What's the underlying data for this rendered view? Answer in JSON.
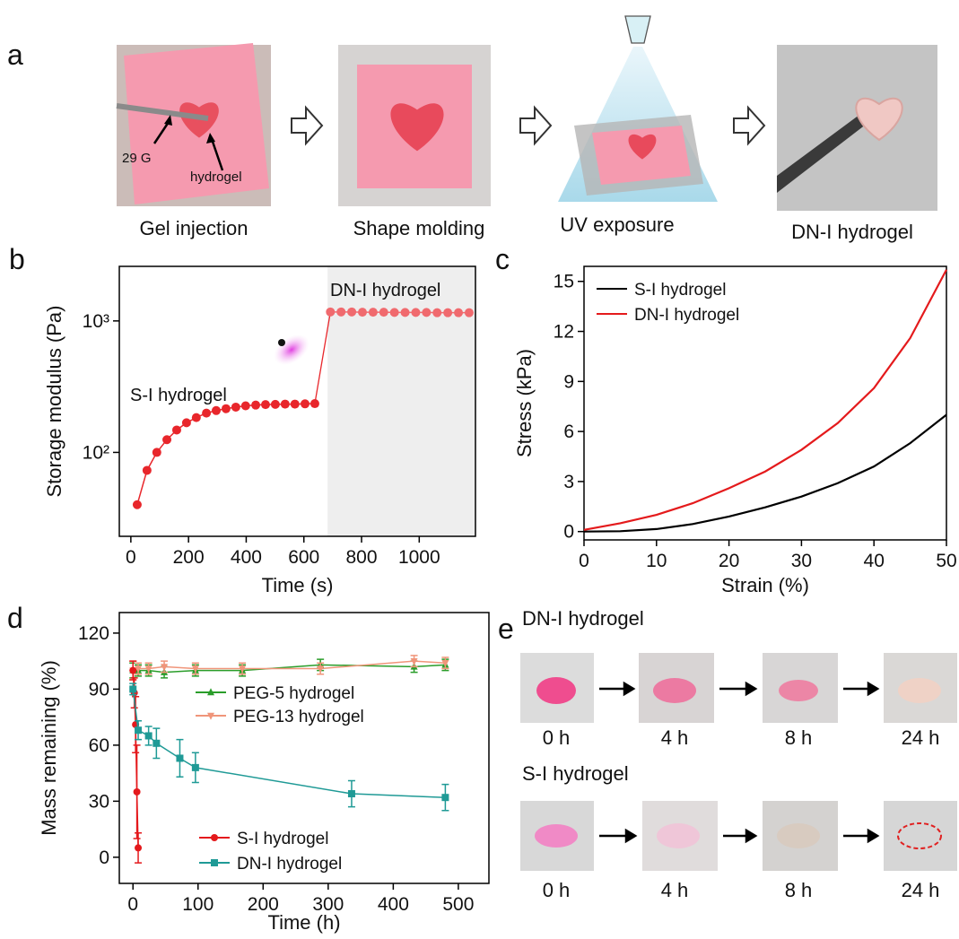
{
  "panel_a": {
    "label": "a",
    "steps": [
      {
        "caption": "Gel injection",
        "annotations": [
          "29 G",
          "hydrogel"
        ]
      },
      {
        "caption": "Shape molding"
      },
      {
        "caption": "UV exposure"
      },
      {
        "caption": "DN-I hydrogel"
      }
    ]
  },
  "chart_data": [
    {
      "type": "line",
      "panel_label": "b",
      "x_label": "Time (s)",
      "y_label": "Storage modulus (Pa)",
      "log_y": true,
      "xlim": [
        -40,
        1195
      ],
      "ylim": [
        23,
        2600
      ],
      "xticks": [
        0,
        200,
        400,
        600,
        800,
        1000
      ],
      "yticks": [
        {
          "value": 100,
          "label": "10²"
        },
        {
          "value": 1000,
          "label": "10³"
        }
      ],
      "shaded_xrange": [
        682,
        1195
      ],
      "connect_series": true,
      "series": [
        {
          "name": "S-I hydrogel",
          "color": "#e8262b",
          "marker": "circle",
          "x": [
            22,
            56,
            90,
            125,
            159,
            193,
            227,
            262,
            296,
            330,
            364,
            398,
            433,
            467,
            501,
            535,
            569,
            604,
            638
          ],
          "values": [
            40,
            73,
            100,
            125,
            148,
            168,
            184,
            199,
            208,
            215,
            221,
            226,
            229,
            231,
            232,
            233,
            233,
            234,
            235
          ]
        },
        {
          "name": "DN-I hydrogel",
          "color": "#f06a6e",
          "marker": "circle",
          "x": [
            692,
            729,
            766,
            803,
            840,
            877,
            914,
            951,
            988,
            1025,
            1062,
            1099,
            1136,
            1173
          ],
          "values": [
            1170,
            1170,
            1170,
            1165,
            1165,
            1165,
            1160,
            1160,
            1160,
            1160,
            1155,
            1155,
            1155,
            1155
          ]
        }
      ]
    },
    {
      "type": "line",
      "panel_label": "c",
      "x_label": "Strain (%)",
      "y_label": "Stress (kPa)",
      "xlim": [
        0,
        50
      ],
      "ylim": [
        -0.5,
        15.9
      ],
      "xticks": [
        0,
        10,
        20,
        30,
        40,
        50
      ],
      "yticks": [
        0,
        3,
        6,
        9,
        12,
        15
      ],
      "legend": "upper left",
      "x": [
        0,
        5,
        10,
        15,
        20,
        25,
        30,
        35,
        40,
        45,
        50
      ],
      "series": [
        {
          "name": "S-I hydrogel",
          "color": "#000000",
          "values": [
            0,
            0.02,
            0.15,
            0.45,
            0.9,
            1.45,
            2.1,
            2.9,
            3.9,
            5.3,
            7.0
          ]
        },
        {
          "name": "DN-I hydrogel",
          "color": "#e41a1c",
          "values": [
            0.1,
            0.5,
            1.0,
            1.7,
            2.6,
            3.6,
            4.9,
            6.5,
            8.6,
            11.6,
            15.7
          ]
        }
      ]
    },
    {
      "type": "line",
      "panel_label": "d",
      "x_label": "Time (h)",
      "y_label": "Mass remaining  (%)",
      "xlim": [
        -21,
        547
      ],
      "ylim": [
        -14,
        131
      ],
      "xticks": [
        0,
        100,
        200,
        300,
        400,
        500
      ],
      "yticks": [
        0,
        30,
        60,
        90,
        120
      ],
      "series": [
        {
          "name": "PEG-5 hydrogel",
          "color": "#2a9d2a",
          "marker": "triangle-up",
          "x": [
            0,
            8,
            24,
            48,
            96,
            168,
            288,
            432,
            480
          ],
          "values": [
            100,
            100,
            100,
            99,
            100,
            100,
            103,
            102,
            103
          ],
          "errors": [
            4,
            3,
            3,
            3,
            3,
            3,
            3,
            3,
            3
          ]
        },
        {
          "name": "PEG-13 hydrogel",
          "color": "#f0957a",
          "marker": "triangle-down",
          "x": [
            0,
            8,
            24,
            48,
            96,
            168,
            288,
            432,
            480
          ],
          "values": [
            100,
            101,
            101,
            102,
            101,
            101,
            101,
            105,
            104
          ],
          "errors": [
            5,
            3,
            3,
            3,
            3,
            3,
            3,
            3,
            3
          ]
        },
        {
          "name": "S-I hydrogel",
          "color": "#e4191c",
          "marker": "circle",
          "x": [
            0,
            2,
            4,
            6,
            8
          ],
          "values": [
            100,
            88,
            71,
            35,
            5
          ],
          "errors": [
            5,
            8,
            15,
            25,
            8
          ]
        },
        {
          "name": "DN-I hydrogel",
          "color": "#1f9a96",
          "marker": "square",
          "x": [
            0,
            8,
            24,
            36,
            72,
            96,
            336,
            480
          ],
          "values": [
            90,
            68,
            65,
            61,
            53,
            48,
            34,
            32
          ],
          "errors": [
            3,
            5,
            5,
            8,
            10,
            8,
            7,
            7
          ]
        }
      ]
    }
  ],
  "panel_e": {
    "label": "e",
    "groups": [
      {
        "title": "DN-I hydrogel",
        "times": [
          "0 h",
          "4 h",
          "8 h",
          "24 h"
        ]
      },
      {
        "title": "S-I hydrogel",
        "times": [
          "0 h",
          "4 h",
          "8 h",
          "24 h"
        ]
      }
    ]
  }
}
